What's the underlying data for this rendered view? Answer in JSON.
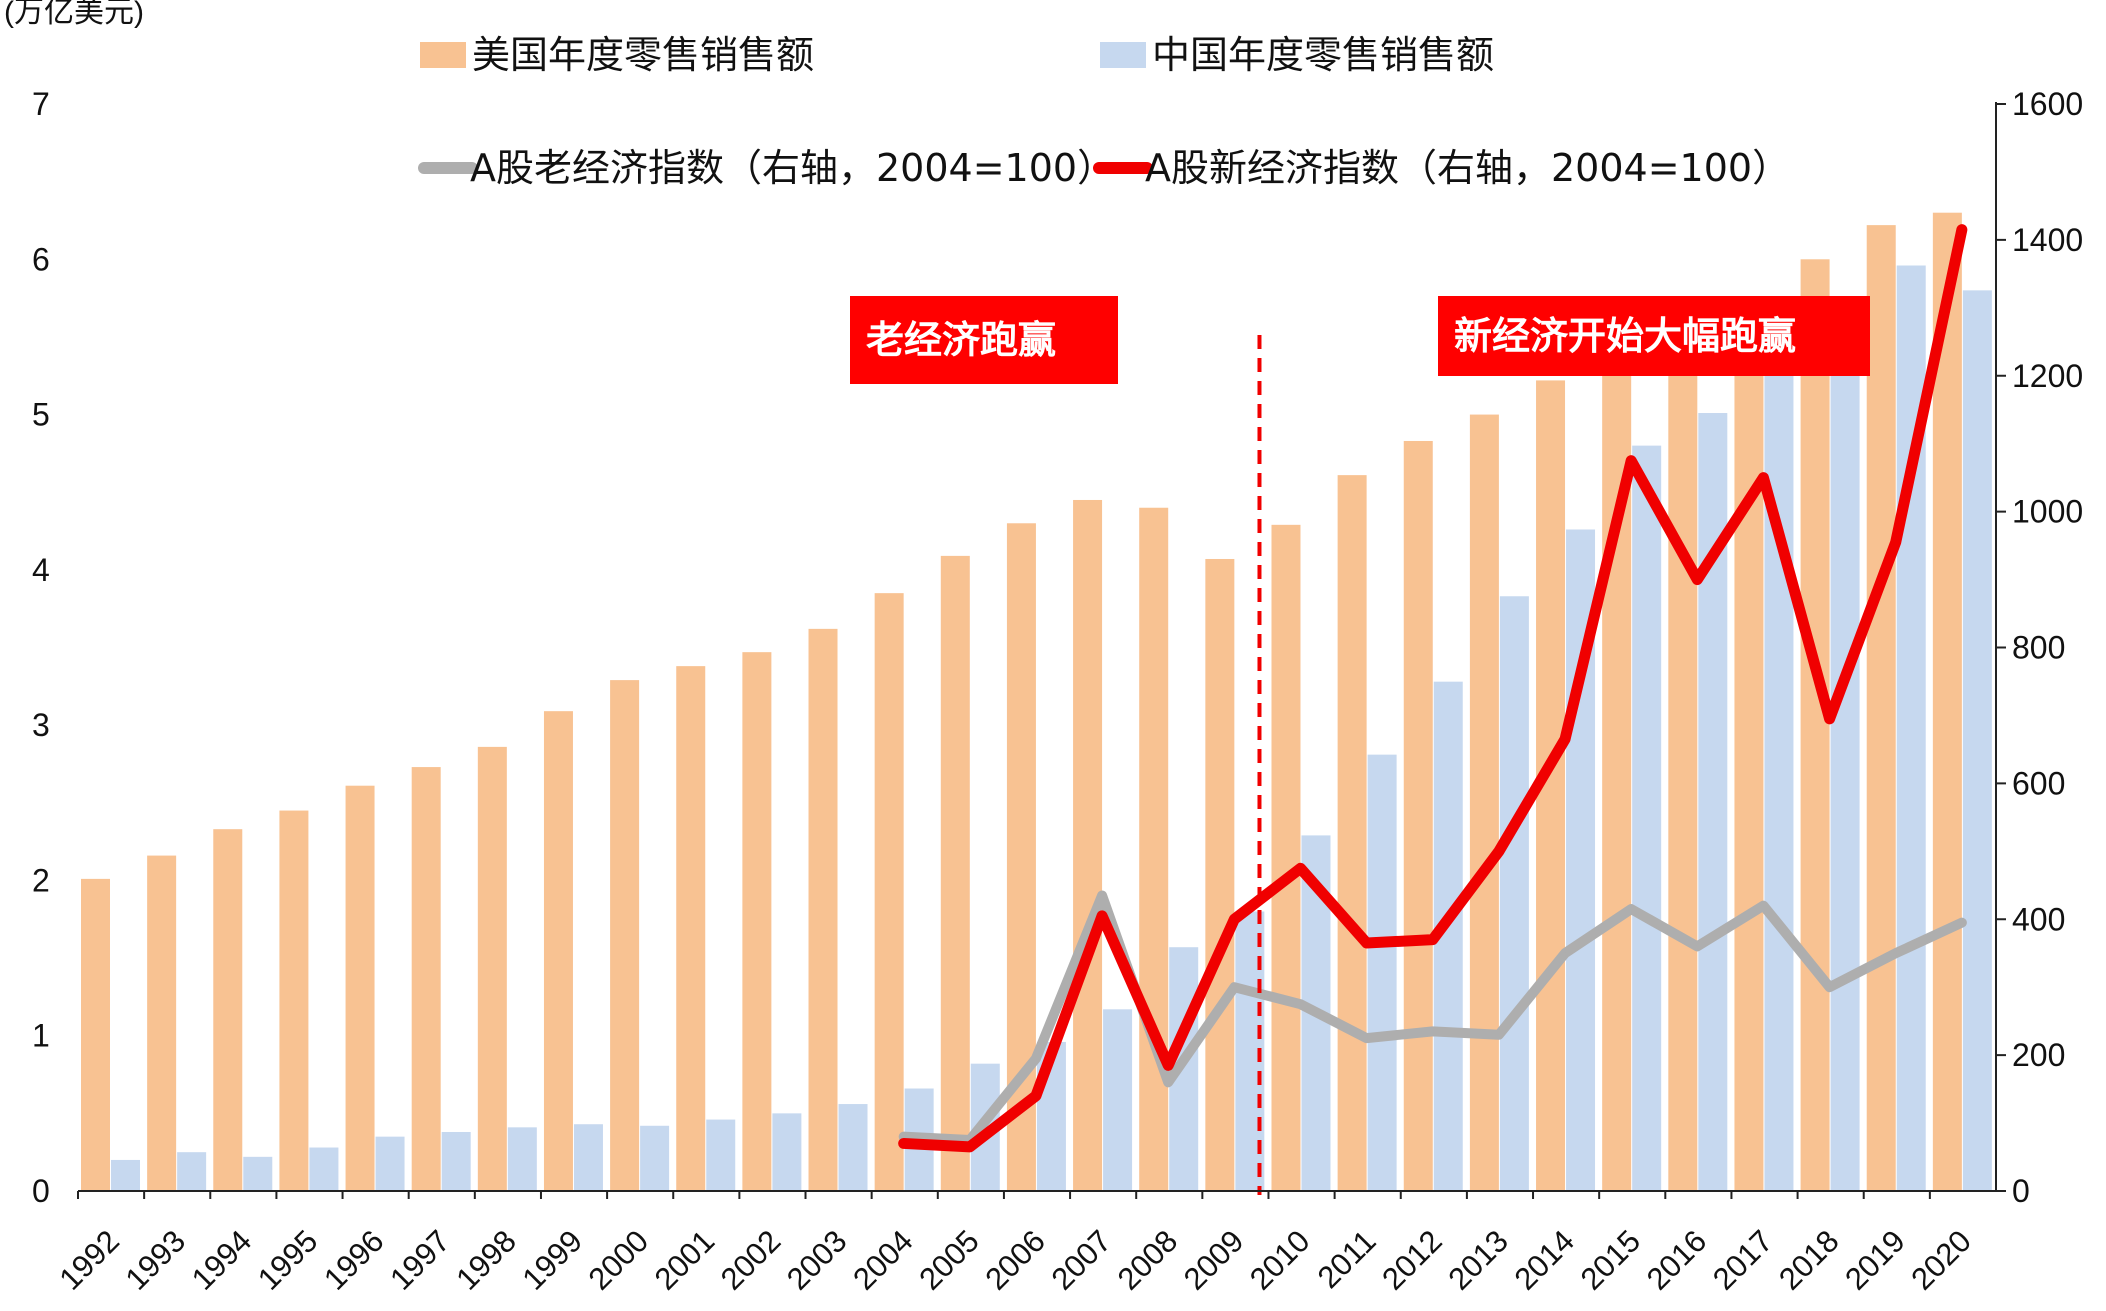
{
  "chart_data": {
    "type": "bar",
    "unit_label": "(万亿美元)",
    "categories": [
      "1992",
      "1993",
      "1994",
      "1995",
      "1996",
      "1997",
      "1998",
      "1999",
      "2000",
      "2001",
      "2002",
      "2003",
      "2004",
      "2005",
      "2006",
      "2007",
      "2008",
      "2009",
      "2010",
      "2011",
      "2012",
      "2013",
      "2014",
      "2015",
      "2016",
      "2017",
      "2018",
      "2019",
      "2020"
    ],
    "left_axis": {
      "range": [
        0,
        7
      ],
      "ticks": [
        "0",
        "1",
        "2",
        "3",
        "4",
        "5",
        "6",
        "7"
      ]
    },
    "right_axis": {
      "range": [
        0,
        1600
      ],
      "ticks": [
        "0",
        "200",
        "400",
        "600",
        "800",
        "1000",
        "1200",
        "1400",
        "1600"
      ]
    },
    "series": [
      {
        "name": "美国年度零售销售额",
        "kind": "bar",
        "axis": "left",
        "color": "#F8C292",
        "values": [
          2.01,
          2.16,
          2.33,
          2.45,
          2.61,
          2.73,
          2.86,
          3.09,
          3.29,
          3.38,
          3.47,
          3.62,
          3.85,
          4.09,
          4.3,
          4.45,
          4.4,
          4.07,
          4.29,
          4.61,
          4.83,
          5.0,
          5.22,
          5.3,
          5.42,
          5.63,
          6.0,
          6.22,
          6.3
        ]
      },
      {
        "name": "中国年度零售销售额",
        "kind": "bar",
        "axis": "left",
        "color": "#C6D8EF",
        "values": [
          0.2,
          0.25,
          0.22,
          0.28,
          0.35,
          0.38,
          0.41,
          0.43,
          0.42,
          0.46,
          0.5,
          0.56,
          0.66,
          0.82,
          0.96,
          1.17,
          1.57,
          1.8,
          2.29,
          2.81,
          3.28,
          3.83,
          4.26,
          4.8,
          5.01,
          5.34,
          5.74,
          5.96,
          5.8
        ]
      },
      {
        "name": "A股老经济指数（右轴，2004=100）",
        "kind": "line",
        "axis": "right",
        "color": "#AEAEAE",
        "values": [
          null,
          null,
          null,
          null,
          null,
          null,
          null,
          null,
          null,
          null,
          null,
          null,
          80,
          75,
          195,
          435,
          160,
          300,
          275,
          225,
          235,
          230,
          350,
          415,
          360,
          420,
          300,
          350,
          395
        ]
      },
      {
        "name": "A股新经济指数（右轴，2004=100）",
        "kind": "line",
        "axis": "right",
        "color": "#F00000",
        "values": [
          null,
          null,
          null,
          null,
          null,
          null,
          null,
          null,
          null,
          null,
          null,
          null,
          70,
          65,
          140,
          405,
          185,
          400,
          475,
          365,
          370,
          500,
          665,
          1075,
          900,
          1050,
          695,
          955,
          1415
        ]
      }
    ],
    "legend": [
      {
        "label": "美国年度零售销售额",
        "color": "#F8C292",
        "kind": "bar"
      },
      {
        "label": "中国年度零售销售额",
        "color": "#C6D8EF",
        "kind": "bar"
      },
      {
        "label": "A股老经济指数（右轴，2004=100）",
        "color": "#AEAEAE",
        "kind": "line"
      },
      {
        "label": "A股新经济指数（右轴，2004=100）",
        "color": "#F00000",
        "kind": "line"
      }
    ],
    "annotations": [
      {
        "text": "老经济跑赢",
        "color": "#FF0000"
      },
      {
        "text": "新经济开始大幅跑赢",
        "color": "#FF0000"
      }
    ],
    "divider_after_category": "2009"
  }
}
